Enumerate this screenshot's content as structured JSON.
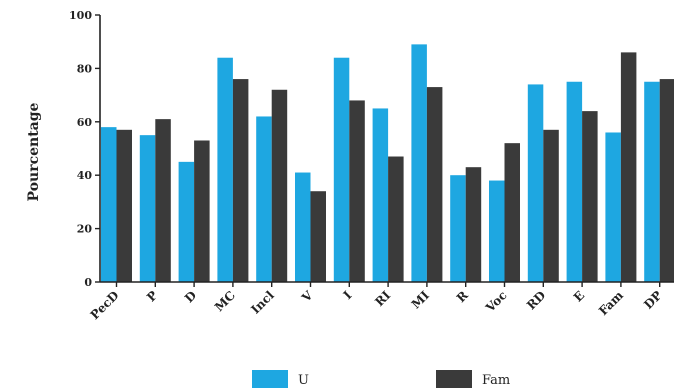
{
  "chart_data": {
    "type": "bar",
    "title": "",
    "xlabel": "",
    "ylabel": "Pourcentage",
    "ylim": [
      0,
      100
    ],
    "yticks": [
      0,
      20,
      40,
      60,
      80,
      100
    ],
    "categories": [
      "PecD",
      "P",
      "D",
      "MC",
      "Incl",
      "V",
      "I",
      "RI",
      "MI",
      "R",
      "Voc",
      "RD",
      "E",
      "Fam",
      "DP"
    ],
    "series": [
      {
        "name": "U",
        "color": "#1ea7e1",
        "values": [
          58,
          55,
          45,
          84,
          62,
          41,
          84,
          65,
          89,
          40,
          38,
          74,
          75,
          56,
          75
        ]
      },
      {
        "name": "Fam",
        "color": "#3a3a3a",
        "values": [
          57,
          61,
          53,
          76,
          72,
          34,
          68,
          47,
          73,
          43,
          52,
          57,
          64,
          86,
          76
        ]
      }
    ],
    "legend_position": "bottom",
    "grid": false
  }
}
